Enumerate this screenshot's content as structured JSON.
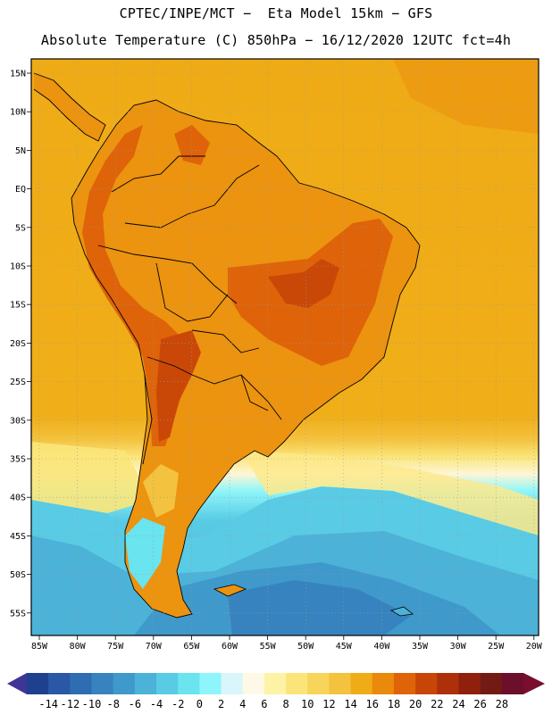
{
  "title_line1": "CPTEC/INPE/MCT −  Eta Model 15km − GFS",
  "title_line2": "Absolute Temperature (C) 850hPa − 16/12/2020 12UTC fct=4h",
  "lat_labels": [
    "15N",
    "10N",
    "5N",
    "EQ",
    "5S",
    "10S",
    "15S",
    "20S",
    "25S",
    "30S",
    "35S",
    "40S",
    "45S",
    "50S",
    "55S"
  ],
  "lon_labels": [
    "85W",
    "80W",
    "75W",
    "70W",
    "65W",
    "60W",
    "55W",
    "50W",
    "45W",
    "40W",
    "35W",
    "30W",
    "25W",
    "20W"
  ],
  "colorbar": {
    "labels": [
      "-14",
      "-12",
      "-10",
      "-8",
      "-6",
      "-4",
      "-2",
      "0",
      "2",
      "4",
      "6",
      "8",
      "10",
      "12",
      "14",
      "16",
      "18",
      "20",
      "22",
      "24",
      "26",
      "28"
    ],
    "colors": [
      "#1f3f8f",
      "#2a57a6",
      "#2f6db3",
      "#3783bf",
      "#3f99cb",
      "#4cb2d8",
      "#59cbe4",
      "#6ae4ee",
      "#8ef6fa",
      "#d9f6fb",
      "#fef9e6",
      "#fdf3a6",
      "#fbe57a",
      "#f7d55b",
      "#f3c23e",
      "#f0ac17",
      "#e98a0c",
      "#df6309",
      "#c84508",
      "#ad300a",
      "#8e200c",
      "#731a14",
      "#6b0f2c"
    ]
  },
  "colors": {
    "ocean_main": "#efac17",
    "land_main": "#ec930f",
    "land_hot": "#df6309",
    "land_hotter": "#c94808",
    "south_yellow": "#f4c63f",
    "cold_cyan": "#59cbe4",
    "cold_blue": "#3f99cb"
  }
}
